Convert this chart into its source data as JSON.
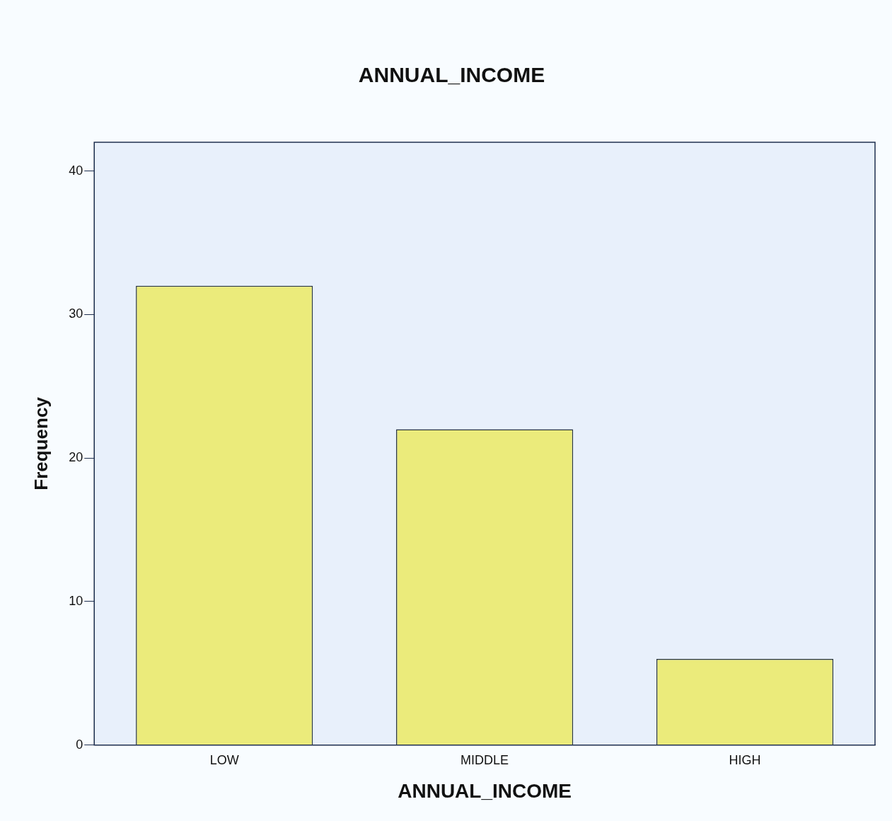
{
  "chart_data": {
    "type": "bar",
    "title": "ANNUAL_INCOME",
    "xlabel": "ANNUAL_INCOME",
    "ylabel": "Frequency",
    "categories": [
      "LOW",
      "MIDDLE",
      "HIGH"
    ],
    "values": [
      32,
      22,
      6
    ],
    "color": "#ebeb7b",
    "ylim": [
      0,
      42
    ],
    "yticks": [
      0,
      10,
      20,
      30,
      40
    ],
    "grid": false,
    "legend": false
  }
}
